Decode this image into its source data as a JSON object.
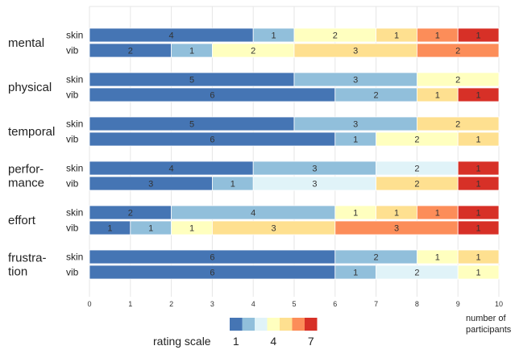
{
  "chart_data": {
    "type": "bar",
    "stacked": true,
    "orientation": "horizontal",
    "xlabel": "number of participants",
    "xlim": [
      0,
      10
    ],
    "xticks": [
      "0",
      "1",
      "2",
      "3",
      "4",
      "5",
      "6",
      "7",
      "8",
      "9",
      "10"
    ],
    "grid": true,
    "rating_colors": [
      "#4575b4",
      "#91bfdb",
      "#e0f3f8",
      "#ffffbf",
      "#fee090",
      "#fc8d59",
      "#d73027"
    ],
    "legend": {
      "title": "rating scale",
      "labels": [
        "1",
        "4",
        "7"
      ],
      "label_ratings": [
        1,
        4,
        7
      ],
      "placement": "bottom"
    },
    "categories": [
      {
        "label_lines": [
          "mental"
        ],
        "rows": [
          {
            "name": "skin",
            "counts": [
              4,
              1,
              0,
              2,
              1,
              1,
              1
            ]
          },
          {
            "name": "vib",
            "counts": [
              2,
              1,
              0,
              2,
              3,
              2,
              0
            ]
          }
        ]
      },
      {
        "label_lines": [
          "physical"
        ],
        "rows": [
          {
            "name": "skin",
            "counts": [
              5,
              3,
              0,
              2,
              0,
              0,
              0
            ]
          },
          {
            "name": "vib",
            "counts": [
              6,
              2,
              0,
              0,
              1,
              0,
              1
            ]
          }
        ]
      },
      {
        "label_lines": [
          "temporal"
        ],
        "rows": [
          {
            "name": "skin",
            "counts": [
              5,
              3,
              0,
              0,
              2,
              0,
              0
            ]
          },
          {
            "name": "vib",
            "counts": [
              6,
              1,
              0,
              2,
              1,
              0,
              0
            ]
          }
        ]
      },
      {
        "label_lines": [
          "perfor-",
          "mance"
        ],
        "rows": [
          {
            "name": "skin",
            "counts": [
              4,
              3,
              2,
              0,
              0,
              0,
              1
            ]
          },
          {
            "name": "vib",
            "counts": [
              3,
              1,
              3,
              0,
              2,
              0,
              1
            ]
          }
        ]
      },
      {
        "label_lines": [
          "effort"
        ],
        "rows": [
          {
            "name": "skin",
            "counts": [
              2,
              4,
              0,
              1,
              1,
              1,
              1
            ]
          },
          {
            "name": "vib",
            "counts": [
              1,
              1,
              0,
              1,
              3,
              3,
              1
            ]
          }
        ]
      },
      {
        "label_lines": [
          "frustra-",
          "tion"
        ],
        "rows": [
          {
            "name": "skin",
            "counts": [
              6,
              2,
              0,
              1,
              1,
              0,
              0
            ]
          },
          {
            "name": "vib",
            "counts": [
              6,
              1,
              2,
              1,
              0,
              0,
              0
            ]
          }
        ]
      }
    ]
  }
}
